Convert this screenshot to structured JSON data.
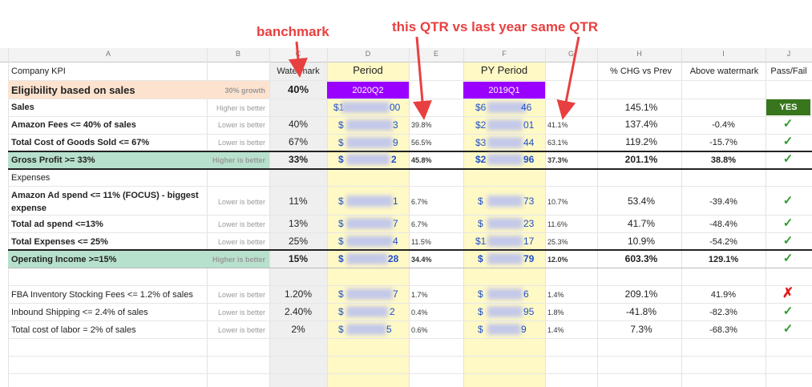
{
  "annotations": {
    "benchmark": "banchmark",
    "comparison": "this QTR vs last year same QTR"
  },
  "column_letters": [
    "A",
    "B",
    "C",
    "D",
    "E",
    "F",
    "G",
    "H",
    "I",
    "J"
  ],
  "headers": {
    "company_kpi": "Company KPI",
    "watermark": "Watermark",
    "period": "Period",
    "py_period": "PY Period",
    "chg_vs_prev": "% CHG vs Prev",
    "above_watermark": "Above watermark",
    "pass_fail": "Pass/Fail"
  },
  "eligibility": {
    "label": "Eligibility based on sales",
    "hint": "30% growth",
    "benchmark": "40%",
    "period_badge": "2020Q2",
    "py_badge": "2019Q1"
  },
  "rows": [
    {
      "kpi": "Sales",
      "hint": "Higher is better",
      "bench": "",
      "period": "$1",
      "period_tail": "00",
      "ppct": "",
      "py": "$6",
      "py_tail": "46",
      "pypct": "",
      "chg": "145.1%",
      "above": "",
      "pf": "YES"
    },
    {
      "kpi": "Amazon Fees <= 40% of sales",
      "hint": "Lower is better",
      "bench": "40%",
      "period": "$",
      "period_tail": "3",
      "ppct": "39.8%",
      "py": "$2",
      "py_tail": "01",
      "pypct": "41.1%",
      "chg": "137.4%",
      "above": "-0.4%",
      "pf": "✓"
    },
    {
      "kpi": "Total Cost of Goods Sold <= 67%",
      "hint": "Lower is better",
      "bench": "67%",
      "period": "$",
      "period_tail": "9",
      "ppct": "56.5%",
      "py": "$3",
      "py_tail": "44",
      "pypct": "63.1%",
      "chg": "119.2%",
      "above": "-15.7%",
      "pf": "✓"
    },
    {
      "kpi": "Gross Profit >= 33%",
      "hint": "Higher is better",
      "bench": "33%",
      "period": "$",
      "period_tail": "2",
      "ppct": "45.8%",
      "py": "$2",
      "py_tail": "96",
      "pypct": "37.3%",
      "chg": "201.1%",
      "above": "38.8%",
      "pf": "✓"
    },
    {
      "kpi": "Expenses",
      "hint": "",
      "bench": "",
      "period": "",
      "period_tail": "",
      "ppct": "",
      "py": "",
      "py_tail": "",
      "pypct": "",
      "chg": "",
      "above": "",
      "pf": ""
    },
    {
      "kpi": "Amazon Ad spend <= 11% (FOCUS) - biggest",
      "kpi2": "expense",
      "hint": "Lower is better",
      "bench": "11%",
      "period": "$",
      "period_tail": "1",
      "ppct": "6.7%",
      "py": "$",
      "py_tail": "73",
      "pypct": "10.7%",
      "chg": "53.4%",
      "above": "-39.4%",
      "pf": "✓"
    },
    {
      "kpi": "Total ad spend <=13%",
      "hint": "Lower is better",
      "bench": "13%",
      "period": "$",
      "period_tail": "7",
      "ppct": "6.7%",
      "py": "$",
      "py_tail": "23",
      "pypct": "11.6%",
      "chg": "41.7%",
      "above": "-48.4%",
      "pf": "✓"
    },
    {
      "kpi": "Total Expenses <= 25%",
      "hint": "Lower is better",
      "bench": "25%",
      "period": "$",
      "period_tail": "4",
      "ppct": "11.5%",
      "py": "$1",
      "py_tail": "17",
      "pypct": "25.3%",
      "chg": "10.9%",
      "above": "-54.2%",
      "pf": "✓"
    },
    {
      "kpi": "Operating Income >=15%",
      "hint": "Higher is better",
      "bench": "15%",
      "period": "$",
      "period_tail": "28",
      "ppct": "34.4%",
      "py": "$",
      "py_tail": "79",
      "pypct": "12.0%",
      "chg": "603.3%",
      "above": "129.1%",
      "pf": "✓"
    },
    {
      "kpi": "FBA Inventory Stocking Fees <= 1.2% of sales",
      "hint": "Lower is better",
      "bench": "1.20%",
      "period": "$",
      "period_tail": "7",
      "ppct": "1.7%",
      "py": "$",
      "py_tail": "6",
      "pypct": "1.4%",
      "chg": "209.1%",
      "above": "41.9%",
      "pf": "✗"
    },
    {
      "kpi": "Inbound Shipping <= 2.4% of sales",
      "hint": "Lower is better",
      "bench": "2.40%",
      "period": "$",
      "period_tail": "2",
      "ppct": "0.4%",
      "py": "$",
      "py_tail": "95",
      "pypct": "1.8%",
      "chg": "-41.8%",
      "above": "-82.3%",
      "pf": "✓"
    },
    {
      "kpi": "Total cost of labor = 2% of sales",
      "hint": "Lower is better",
      "bench": "2%",
      "period": "$",
      "period_tail": "5",
      "ppct": "0.6%",
      "py": "$",
      "py_tail": "9",
      "pypct": "1.4%",
      "chg": "7.3%",
      "above": "-68.3%",
      "pf": "✓"
    }
  ],
  "colors": {
    "eligibility_bg": "#fde3cf",
    "section_bg": "#b7e1cd",
    "badge": "#9900ff",
    "watermark_col": "#efefef",
    "period_col": "#fff9c6",
    "yes_bg": "#38761d",
    "annotation": "#e84040"
  }
}
